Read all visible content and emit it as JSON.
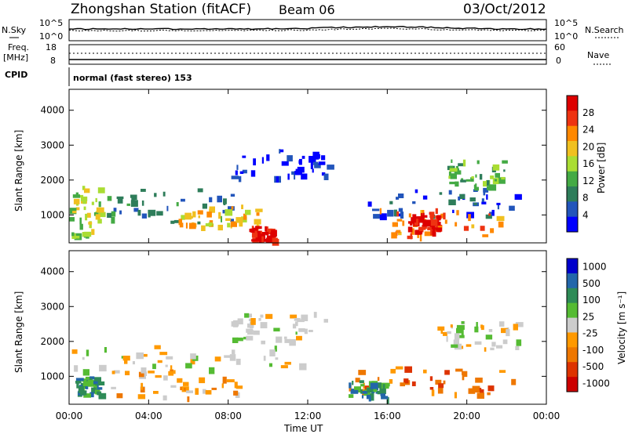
{
  "header": {
    "station": "Zhongshan Station (fitACF)",
    "beam": "Beam 06",
    "date": "03/Oct/2012"
  },
  "top_panel": {
    "left_label": "N.Sky",
    "right_label": "N.Search",
    "left_ticks": [
      "10^5",
      "10^0"
    ],
    "right_ticks": [
      "10^5",
      "10^0"
    ]
  },
  "freq_panel": {
    "left_label_1": "Freq.",
    "left_label_2": "[MHz]",
    "right_label": "Nave",
    "left_ticks": [
      "18",
      "8"
    ],
    "right_ticks": [
      "60",
      "0"
    ]
  },
  "cpid": {
    "label": "CPID",
    "value": "normal (fast stereo) 153"
  },
  "colors": {
    "power": [
      "#0000ff",
      "#2255bb",
      "#2e7d5a",
      "#44aa44",
      "#aadd33",
      "#f0c020",
      "#ff8800",
      "#ee3311",
      "#dd0000"
    ],
    "velocity": [
      "#0000cc",
      "#2266aa",
      "#2e8b57",
      "#55bb33",
      "#cccccc",
      "#ff9900",
      "#ee7700",
      "#dd3300",
      "#cc0000"
    ]
  },
  "chart_data": [
    {
      "type": "heatmap",
      "title": "Power",
      "ylabel": "Slant Range [km]",
      "xlabel": "Time UT",
      "x_ticks": [
        "00:00",
        "04:00",
        "08:00",
        "12:00",
        "16:00",
        "20:00",
        "00:00"
      ],
      "y_ticks": [
        "1000",
        "2000",
        "3000",
        "4000"
      ],
      "ylim": [
        200,
        4600
      ],
      "colorbar": {
        "label": "Power [dB]",
        "ticks": [
          "4",
          "8",
          "12",
          "16",
          "20",
          "24",
          "28"
        ]
      },
      "regions": [
        {
          "t0": 0.0,
          "t1": 1.5,
          "r0": 400,
          "r1": 1900,
          "level": 4
        },
        {
          "t0": 1.5,
          "t1": 8.5,
          "r0": 800,
          "r1": 1800,
          "level": 2
        },
        {
          "t0": 5.5,
          "t1": 9.5,
          "r0": 700,
          "r1": 1300,
          "level": 5
        },
        {
          "t0": 9.0,
          "t1": 10.3,
          "r0": 300,
          "r1": 700,
          "level": 8
        },
        {
          "t0": 8.0,
          "t1": 13.0,
          "r0": 2100,
          "r1": 2900,
          "level": 0
        },
        {
          "t0": 15.0,
          "t1": 22.5,
          "r0": 1000,
          "r1": 1800,
          "level": 1
        },
        {
          "t0": 15.5,
          "t1": 22.0,
          "r0": 400,
          "r1": 1200,
          "level": 6
        },
        {
          "t0": 17.0,
          "t1": 18.5,
          "r0": 500,
          "r1": 1100,
          "level": 8
        },
        {
          "t0": 19.0,
          "t1": 22.0,
          "r0": 1800,
          "r1": 2600,
          "level": 3
        }
      ]
    },
    {
      "type": "heatmap",
      "title": "Velocity",
      "ylabel": "Slant Range [km]",
      "xlabel": "Time UT",
      "x_ticks": [
        "00:00",
        "04:00",
        "08:00",
        "12:00",
        "16:00",
        "20:00",
        "00:00"
      ],
      "y_ticks": [
        "1000",
        "2000",
        "3000",
        "4000"
      ],
      "ylim": [
        200,
        4600
      ],
      "colorbar": {
        "label": "Velocity [m s⁻¹]",
        "ticks": [
          "1000",
          "500",
          "100",
          "25",
          "-25",
          "-100",
          "-500",
          "-1000"
        ]
      },
      "regions": [
        {
          "t0": 0.3,
          "t1": 1.5,
          "r0": 500,
          "r1": 1000,
          "level": 2
        },
        {
          "t0": 1.5,
          "t1": 8.5,
          "r0": 400,
          "r1": 1200,
          "level": 5
        },
        {
          "t0": 0.0,
          "t1": 12.0,
          "r0": 1200,
          "r1": 1900,
          "level": 4
        },
        {
          "t0": 8.0,
          "t1": 13.0,
          "r0": 2000,
          "r1": 2900,
          "level": 4
        },
        {
          "t0": 14.0,
          "t1": 22.5,
          "r0": 500,
          "r1": 1300,
          "level": 6
        },
        {
          "t0": 14.0,
          "t1": 16.0,
          "r0": 400,
          "r1": 900,
          "level": 2
        },
        {
          "t0": 18.5,
          "t1": 22.5,
          "r0": 1800,
          "r1": 2600,
          "level": 4
        }
      ]
    }
  ]
}
